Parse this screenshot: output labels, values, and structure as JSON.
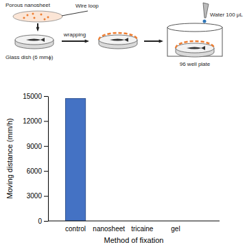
{
  "chart_data": {
    "type": "bar",
    "categories": [
      "control",
      "nanosheet",
      "tricaine",
      "gel"
    ],
    "values": [
      14700,
      0,
      0,
      0
    ],
    "color": "#4472c4",
    "ylim": [
      0,
      15000
    ],
    "yticks": [
      0,
      3000,
      6000,
      9000,
      12000,
      15000
    ],
    "x_label": "Method of fixation",
    "y_label": "Moving distance (mm/h)"
  },
  "diagram": {
    "labels": {
      "nanosheet": "Porous nanosheet",
      "wire": "Wire loop",
      "action": "wrapping",
      "dish": "Glass dish (6 mmϕ)",
      "water": "Water 100 μL",
      "plate": "96 well plate"
    }
  }
}
